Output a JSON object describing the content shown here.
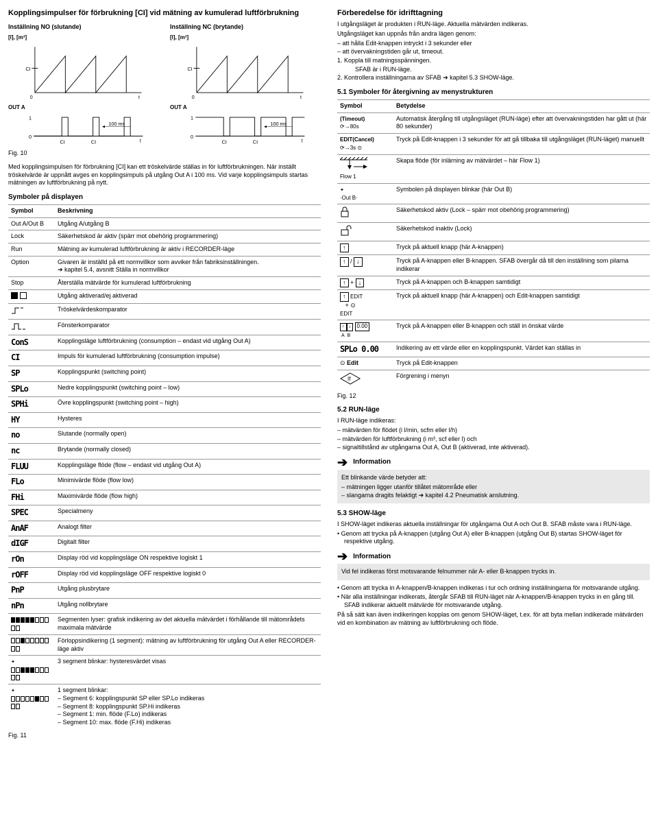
{
  "left": {
    "title": "Kopplingsimpulser för förbrukning [CI] vid mätning av kumulerad luftförbrukning",
    "col_no": "Inställning NO (slutande)",
    "col_nc": "Inställning NC (brytande)",
    "graph_ylabel": "[l], [m³]",
    "graph_ci": "CI",
    "graph_zero": "0",
    "graph_t": "t",
    "outa": "OUT A",
    "out_one": "1",
    "out_zero": "0",
    "out_ms": "100 ms",
    "fig10": "Fig. 10",
    "para1": "Med kopplingsimpulsen för förbrukning [CI] kan ett tröskelvärde ställas in för luftförbrukningen. När inställt tröskelvärde är uppnått avges en kopplingsimpuls på utgång Out A i 100 ms. Vid varje kopplingsimpuls startas mätningen av luftförbrukning på nytt.",
    "symdisp_head": "Symboler på displayen",
    "tbl1_h1": "Symbol",
    "tbl1_h2": "Beskrivning",
    "tbl1": [
      {
        "s": "Out A/Out B",
        "d": "Utgång A/utgång B"
      },
      {
        "s": "Lock",
        "d": "Säkerhetskod är aktiv (spärr mot obehörig programmering)"
      },
      {
        "s": "Run",
        "d": "Mätning av kumulerad luftförbrukning är aktiv i RECORDER-läge"
      },
      {
        "s": "Option",
        "d": "Givaren är inställd på ett normvillkor som avviker från fabriksinställningen.\n➔ kapitel 5.4, avsnitt Ställa in normvillkor"
      },
      {
        "s": "Stop",
        "d": "Återställa mätvärde för kumulerad luftförbrukning"
      },
      {
        "s": "icon:halfbox",
        "d": "Utgång aktiverad/ej aktiverad"
      },
      {
        "s": "icon:threshold",
        "d": "Tröskelvärdeskomparator"
      },
      {
        "s": "icon:window",
        "d": "Fönsterkomparator"
      },
      {
        "s": "seg:ConS",
        "d": "Kopplingsläge luftförbrukning (consumption – endast vid utgång Out A)"
      },
      {
        "s": "seg:CI",
        "d": "Impuls för kumulerad luftförbrukning (consumption impulse)"
      },
      {
        "s": "seg:SP",
        "d": "Kopplingspunkt (switching point)"
      },
      {
        "s": "seg:SPLo",
        "d": "Nedre kopplingspunkt (switching point – low)"
      },
      {
        "s": "seg:SPHi",
        "d": "Övre kopplingspunkt (switching point – high)"
      },
      {
        "s": "seg:HY",
        "d": "Hysteres"
      },
      {
        "s": "seg:no",
        "d": "Slutande (normally open)"
      },
      {
        "s": "seg:nc",
        "d": "Brytande (normally closed)"
      },
      {
        "s": "seg:FLUU",
        "d": "Kopplingsläge flöde (flow – endast vid utgång Out A)"
      },
      {
        "s": "seg:FLo",
        "d": "Minimivärde flöde (flow low)"
      },
      {
        "s": "seg:FHi",
        "d": "Maximivärde flöde (flow high)"
      },
      {
        "s": "seg:SPEC",
        "d": "Specialmeny"
      },
      {
        "s": "seg:AnAF",
        "d": "Analogt filter"
      },
      {
        "s": "seg:dIGF",
        "d": "Digitalt filter"
      },
      {
        "s": "seg:rOn",
        "d": "Display röd vid kopplingsläge ON respektive logiskt 1"
      },
      {
        "s": "seg:rOFF",
        "d": "Display röd vid kopplingsläge OFF respektive logiskt 0"
      },
      {
        "s": "seg:PnP",
        "d": "Utgång plusbrytare"
      },
      {
        "s": "seg:nPn",
        "d": "Utgång nollbrytare"
      },
      {
        "s": "icon:seg5",
        "d": "Segmenten lyser: grafisk indikering av det aktuella mätvärdet i förhållande till mätområdets maximala mätvärde"
      },
      {
        "s": "icon:seg1b",
        "d": "Förloppsindikering (1 segment): mätning av luftförbrukning för utgång Out A eller RECORDER-läge aktiv"
      },
      {
        "s": "icon:seg3blink",
        "d": "3 segment blinkar: hysteresvärdet visas"
      },
      {
        "s": "icon:seg1blink",
        "d": "1 segment blinkar:\n–  Segment 6:      kopplingspunkt SP eller SP.Lo indikeras\n–  Segment 8:      kopplingspunkt SP.Hi indikeras\n–  Segment 1:      min. flöde (F.Lo) indikeras\n–  Segment 10:    max. flöde (F.Hi) indikeras"
      }
    ],
    "fig11": "Fig. 11"
  },
  "right": {
    "prep_head": "Förberedelse för idrifttagning",
    "prep_p1": "I utgångsläget är produkten i RUN-läge. Aktuella mätvärden indikeras.",
    "prep_p2": "Utgångsläget kan uppnås från andra lägen genom:",
    "prep_d1": "–  att hålla Edit-knappen intryckt i 3 sekunder eller",
    "prep_d2": "–  att övervakningstiden går ut, timeout.",
    "prep_n1": "1.   Koppla till matningsspänningen.",
    "prep_n1b": "SFAB är i RUN-läge.",
    "prep_n2": "2.   Kontrollera inställningarna av SFAB ➔ kapitel 5.3 SHOW-läge.",
    "s51_head": "5.1  Symboler för återgivning av menystrukturen",
    "tbl2_h1": "Symbol",
    "tbl2_h2": "Betydelse",
    "tbl2": [
      {
        "s": "(Timeout)",
        "sub": "⟳→80s",
        "d": "Automatisk återgång till utgångsläget (RUN-läge) efter att övervakningstiden har gått ut (här 80 sekunder)"
      },
      {
        "s": "EDIT(Cancel)",
        "sub": "⟳→3s ⊙",
        "d": "Tryck på Edit-knappen i 3 sekunder för att gå tillbaka till utgångsläget (RUN-läget) manuellt"
      },
      {
        "s": "icon:hatch",
        "sub": "Flow 1",
        "d": "Skapa flöde (för inlärning av mätvärdet – här Flow 1)"
      },
      {
        "s": "icon:blinkoutb",
        "d": "Symbolen på displayen blinkar (här Out B)"
      },
      {
        "s": "icon:lockclosed",
        "d": "Säkerhetskod aktiv (Lock – spärr mot obehörig programmering)"
      },
      {
        "s": "icon:lockopen",
        "d": "Säkerhetskod inaktiv (Lock)"
      },
      {
        "s": "icon:upbox",
        "d": "Tryck på aktuell knapp (här A-knappen)"
      },
      {
        "s": "icon:updown",
        "d": "Tryck på A-knappen eller B-knappen. SFAB övergår då till den inställning som pilarna indikerar"
      },
      {
        "s": "icon:upplusdown",
        "d": "Tryck på A-knappen och B-knappen samtidigt"
      },
      {
        "s": "icon:upeditplus",
        "sub": "EDIT",
        "d": "Tryck på aktuell knapp (här A-knappen) och Edit-knappen samtidigt"
      },
      {
        "s": "icon:ab000",
        "d": "Tryck på A-knappen eller B-knappen och ställ in önskat värde"
      },
      {
        "s": "seg:SPLo 0.00",
        "d": "Indikering av ett värde eller en kopplingspunkt. Värdet kan ställas in"
      },
      {
        "s": "icon:editcircle",
        "d": "Tryck på Edit-knappen"
      },
      {
        "s": "icon:ifdiamond",
        "d": "Förgrening i menyn"
      }
    ],
    "fig12": "Fig. 12",
    "s52_head": "5.2  RUN-läge",
    "s52_p1": "I RUN-läge indikeras:",
    "s52_d1": "–  mätvärden för flödet (i l/min, scfm eller l/h)",
    "s52_d2": "–  mätvärden för luftförbrukning (i m³, scf eller l) och",
    "s52_d3": "–  signaltillstånd av utgångarna Out A, Out B (aktiverad, inte aktiverad).",
    "info_label": "Information",
    "s52_info1": "Ett blinkande värde betyder att:",
    "s52_info_d1": "–  mätningen ligger utanför tillåtet mätområde eller",
    "s52_info_d2": "–  slangarna dragits felaktigt ➔ kapitel 4.2 Pneumatisk anslutning.",
    "s53_head": "5.3  SHOW-läge",
    "s53_p1": "I SHOW-läget indikeras aktuella inställningar för utgångarna Out A och Out B. SFAB måste vara i RUN-läge.",
    "s53_b1": "•  Genom att trycka på A-knappen (utgång Out A) eller B-knappen (utgång Out B) startas SHOW-läget för respektive utgång.",
    "s53_info": "Vid fel indikeras först motsvarande felnummer när A- eller B-knappen trycks in.",
    "s53_b2": "•  Genom att trycka in A-knappen/B-knappen indikeras i tur och ordning inställningarna för motsvarande utgång.",
    "s53_b3": "•  När alla inställningar indikerats, återgår SFAB till RUN-läget när A-knappen/B-knappen trycks in en gång till. SFAB indikerar aktuellt mätvärde för motsvarande utgång.",
    "s53_p2": "På så sätt kan även indikeringen kopplas om genom SHOW-läget, t.ex. för att byta mellan indikerade mätvärden vid en kombination av mätning av luftförbrukning och flöde."
  },
  "colors": {
    "text": "#000000",
    "rule": "#999999",
    "infobg": "#e8e8e8"
  }
}
